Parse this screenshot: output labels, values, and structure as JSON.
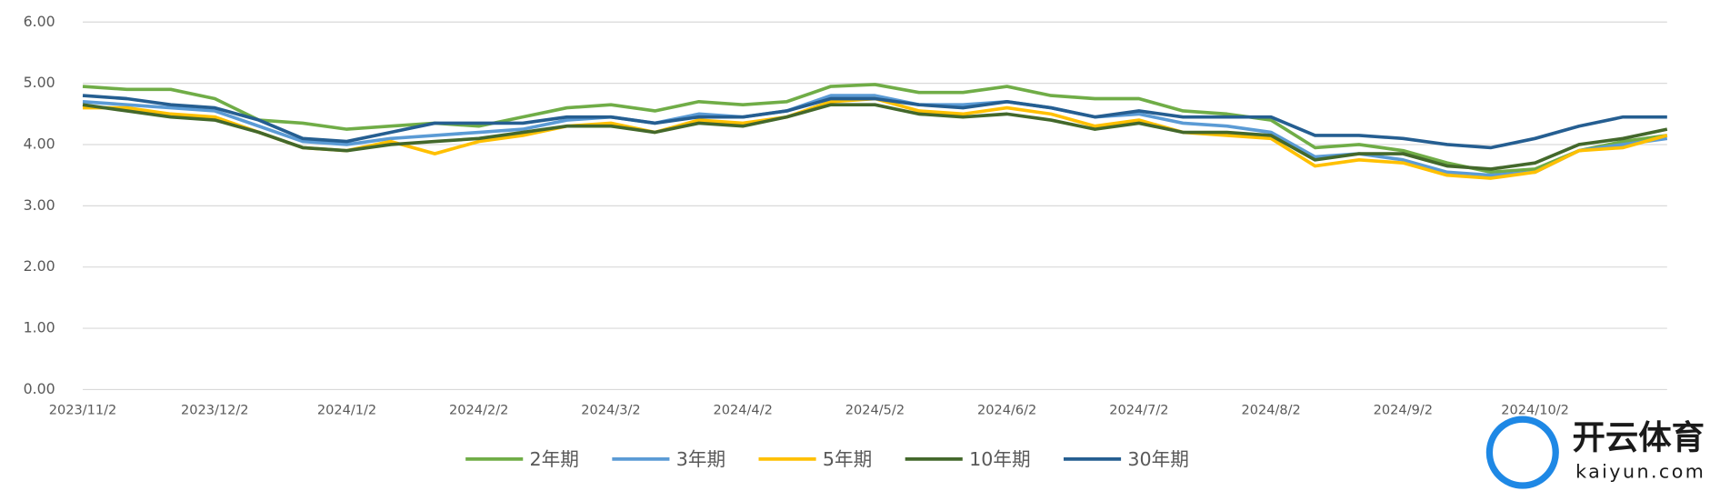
{
  "chart_data": {
    "type": "line",
    "categories": [
      "2023/11/2",
      null,
      null,
      "2023/12/2",
      null,
      null,
      "2024/1/2",
      null,
      null,
      "2024/2/2",
      null,
      null,
      "2024/3/2",
      null,
      null,
      "2024/4/2",
      null,
      null,
      "2024/5/2",
      null,
      null,
      "2024/6/2",
      null,
      null,
      "2024/7/2",
      null,
      null,
      "2024/8/2",
      null,
      null,
      "2024/9/2",
      null,
      null,
      "2024/10/2",
      null,
      null,
      null
    ],
    "series": [
      {
        "name": "2年期",
        "color": "#70ad47",
        "values": [
          4.95,
          4.9,
          4.9,
          4.75,
          4.4,
          4.35,
          4.25,
          4.3,
          4.35,
          4.3,
          4.45,
          4.6,
          4.65,
          4.55,
          4.7,
          4.65,
          4.7,
          4.95,
          4.98,
          4.85,
          4.85,
          4.95,
          4.8,
          4.75,
          4.75,
          4.55,
          4.5,
          4.4,
          3.95,
          4.0,
          3.9,
          3.7,
          3.55,
          3.6,
          3.9,
          4.05,
          4.15
        ]
      },
      {
        "name": "3年期",
        "color": "#5b9bd5",
        "values": [
          4.7,
          4.65,
          4.6,
          4.55,
          4.3,
          4.05,
          4.0,
          4.1,
          4.15,
          4.2,
          4.25,
          4.4,
          4.45,
          4.35,
          4.5,
          4.45,
          4.55,
          4.8,
          4.8,
          4.65,
          4.65,
          4.7,
          4.6,
          4.45,
          4.5,
          4.35,
          4.3,
          4.2,
          3.8,
          3.85,
          3.75,
          3.55,
          3.5,
          3.55,
          3.9,
          4.0,
          4.1
        ]
      },
      {
        "name": "5年期",
        "color": "#ffc000",
        "values": [
          4.6,
          4.6,
          4.5,
          4.45,
          4.2,
          3.95,
          3.9,
          4.05,
          3.85,
          4.05,
          4.15,
          4.3,
          4.35,
          4.2,
          4.4,
          4.35,
          4.45,
          4.7,
          4.75,
          4.55,
          4.5,
          4.6,
          4.5,
          4.3,
          4.4,
          4.2,
          4.15,
          4.1,
          3.65,
          3.75,
          3.7,
          3.5,
          3.45,
          3.55,
          3.9,
          3.95,
          4.15
        ]
      },
      {
        "name": "10年期",
        "color": "#43682b",
        "values": [
          4.65,
          4.55,
          4.45,
          4.4,
          4.2,
          3.95,
          3.9,
          4.0,
          4.05,
          4.1,
          4.2,
          4.3,
          4.3,
          4.2,
          4.35,
          4.3,
          4.45,
          4.65,
          4.65,
          4.5,
          4.45,
          4.5,
          4.4,
          4.25,
          4.35,
          4.2,
          4.2,
          4.15,
          3.75,
          3.85,
          3.85,
          3.65,
          3.6,
          3.7,
          4.0,
          4.1,
          4.25
        ]
      },
      {
        "name": "30年期",
        "color": "#255e91",
        "values": [
          4.8,
          4.75,
          4.65,
          4.6,
          4.4,
          4.1,
          4.05,
          4.2,
          4.35,
          4.35,
          4.35,
          4.45,
          4.45,
          4.35,
          4.45,
          4.45,
          4.55,
          4.75,
          4.75,
          4.65,
          4.6,
          4.7,
          4.6,
          4.45,
          4.55,
          4.45,
          4.45,
          4.45,
          4.15,
          4.15,
          4.1,
          4.0,
          3.95,
          4.1,
          4.3,
          4.45,
          4.45
        ]
      }
    ],
    "ylim": [
      0,
      6
    ],
    "yticks": [
      {
        "value": 0,
        "label": "0.00"
      },
      {
        "value": 1,
        "label": "1.00"
      },
      {
        "value": 2,
        "label": "2.00"
      },
      {
        "value": 3,
        "label": "3.00"
      },
      {
        "value": 4,
        "label": "4.00"
      },
      {
        "value": 5,
        "label": "5.00"
      },
      {
        "value": 6,
        "label": "6.00"
      }
    ],
    "grid": true,
    "legend": "bottom",
    "watermark": [
      "开云体育",
      "kaiyun.com"
    ]
  }
}
